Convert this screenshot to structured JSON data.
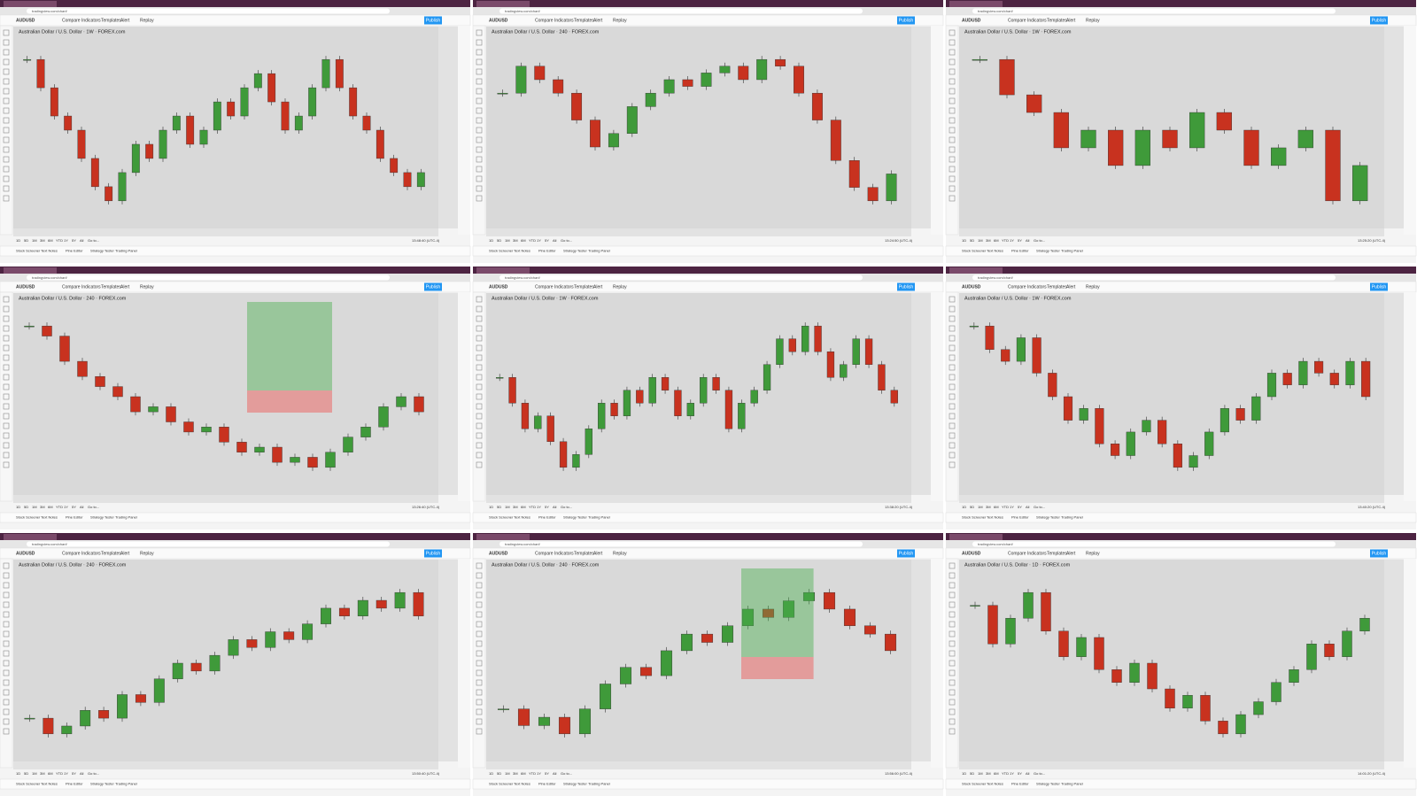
{
  "toolbar": [
    "Compare",
    "Indicators",
    "Templates",
    "Alert",
    "Replay"
  ],
  "publish": "Publish",
  "symbol": "AUDUSD",
  "ranges": [
    "1D",
    "5D",
    "1M",
    "3M",
    "6M",
    "YTD",
    "1Y",
    "5Y",
    "All",
    "Go to..."
  ],
  "bottom_tabs": [
    "Stock Screener",
    "Text Notes",
    "Pine Editor",
    "Strategy Tester",
    "Trading Panel"
  ],
  "address": "tradingview.com/chart/",
  "panels": [
    {
      "title": "Australian Dollar / U.S. Dollar · 1W · FOREX.com",
      "clock": "13:48:40 (UTC-4)",
      "prices": [
        0.8,
        0.78,
        0.76,
        0.75,
        0.73,
        0.71,
        0.7,
        0.72,
        0.74,
        0.73,
        0.75,
        0.76,
        0.74,
        0.75,
        0.77,
        0.76,
        0.78,
        0.79,
        0.77,
        0.75,
        0.76,
        0.78,
        0.8,
        0.78,
        0.76,
        0.75,
        0.73,
        0.72,
        0.71,
        0.72
      ]
    },
    {
      "title": "Australian Dollar / U.S. Dollar · 240 · FOREX.com",
      "clock": "13:24:50 (UTC-4)",
      "prices": [
        0.76,
        0.764,
        0.762,
        0.76,
        0.756,
        0.752,
        0.754,
        0.758,
        0.76,
        0.762,
        0.761,
        0.763,
        0.764,
        0.762,
        0.765,
        0.764,
        0.76,
        0.756,
        0.75,
        0.746,
        0.744,
        0.748
      ]
    },
    {
      "title": "Australian Dollar / U.S. Dollar · 1W · FOREX.com",
      "clock": "13:25:20 (UTC-4)",
      "prices": [
        0.8,
        0.78,
        0.77,
        0.75,
        0.76,
        0.74,
        0.76,
        0.75,
        0.77,
        0.76,
        0.74,
        0.75,
        0.76,
        0.72,
        0.74
      ]
    },
    {
      "title": "Australian Dollar / U.S. Dollar · 240 · FOREX.com",
      "clock": "13:26:40 (UTC-4)",
      "prices": [
        0.772,
        0.77,
        0.765,
        0.762,
        0.76,
        0.758,
        0.755,
        0.756,
        0.753,
        0.751,
        0.752,
        0.749,
        0.747,
        0.748,
        0.745,
        0.746,
        0.744,
        0.747,
        0.75,
        0.752,
        0.756,
        0.758,
        0.755
      ]
    },
    {
      "title": "Australian Dollar / U.S. Dollar · 1W · FOREX.com",
      "clock": "13:38:20 (UTC-4)",
      "prices": [
        0.77,
        0.75,
        0.73,
        0.74,
        0.72,
        0.7,
        0.71,
        0.73,
        0.75,
        0.74,
        0.76,
        0.75,
        0.77,
        0.76,
        0.74,
        0.75,
        0.77,
        0.76,
        0.73,
        0.75,
        0.76,
        0.78,
        0.8,
        0.79,
        0.81,
        0.79,
        0.77,
        0.78,
        0.8,
        0.78,
        0.76,
        0.75
      ]
    },
    {
      "title": "Australian Dollar / U.S. Dollar · 1W · FOREX.com",
      "clock": "13:40:20 (UTC-4)",
      "prices": [
        0.82,
        0.8,
        0.79,
        0.81,
        0.78,
        0.76,
        0.74,
        0.75,
        0.72,
        0.71,
        0.73,
        0.74,
        0.72,
        0.7,
        0.71,
        0.73,
        0.75,
        0.74,
        0.76,
        0.78,
        0.77,
        0.79,
        0.78,
        0.77,
        0.79,
        0.76
      ]
    },
    {
      "title": "Australian Dollar / U.S. Dollar · 240 · FOREX.com",
      "clock": "13:50:40 (UTC-4)",
      "prices": [
        0.745,
        0.743,
        0.744,
        0.746,
        0.745,
        0.748,
        0.747,
        0.75,
        0.752,
        0.751,
        0.753,
        0.755,
        0.754,
        0.756,
        0.755,
        0.757,
        0.759,
        0.758,
        0.76,
        0.759,
        0.761,
        0.758
      ]
    },
    {
      "title": "Australian Dollar / U.S. Dollar · 240 · FOREX.com",
      "clock": "13:56:00 (UTC-4)",
      "prices": [
        0.745,
        0.743,
        0.744,
        0.742,
        0.745,
        0.748,
        0.75,
        0.749,
        0.752,
        0.754,
        0.753,
        0.755,
        0.757,
        0.756,
        0.758,
        0.759,
        0.757,
        0.755,
        0.754,
        0.752
      ]
    },
    {
      "title": "Australian Dollar / U.S. Dollar · 1D · FOREX.com",
      "clock": "14:01:20 (UTC-4)",
      "prices": [
        0.762,
        0.756,
        0.76,
        0.764,
        0.758,
        0.754,
        0.757,
        0.752,
        0.75,
        0.753,
        0.749,
        0.746,
        0.748,
        0.744,
        0.742,
        0.745,
        0.747,
        0.75,
        0.752,
        0.756,
        0.754,
        0.758,
        0.76
      ]
    }
  ]
}
